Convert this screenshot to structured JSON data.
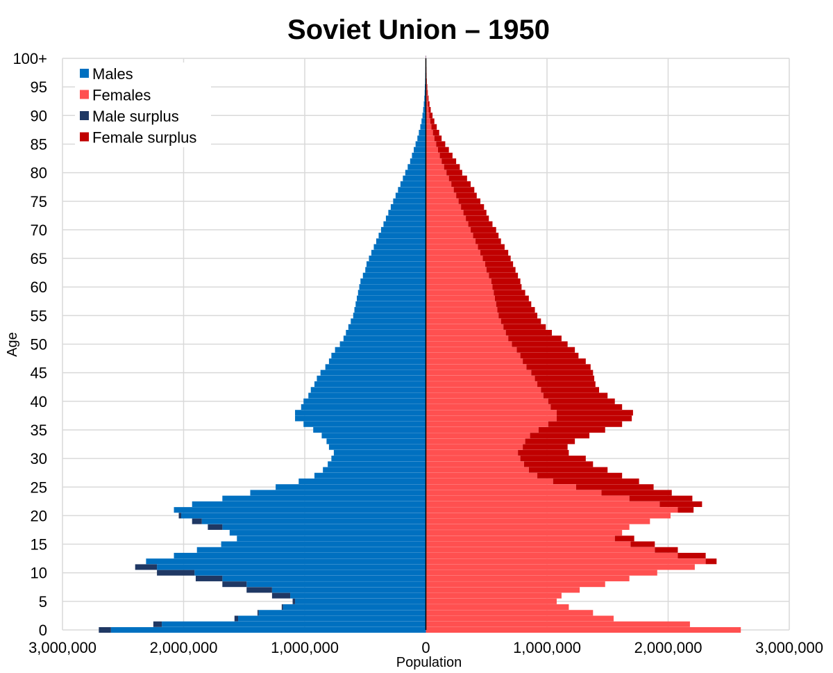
{
  "chart_data": {
    "type": "bar",
    "orientation": "horizontal",
    "title": "Soviet Union – 1950",
    "xlabel": "Population",
    "ylabel": "Age",
    "xlim": [
      -3000000,
      3000000
    ],
    "ylim": [
      0,
      100
    ],
    "x_tick_values": [
      -3000000,
      -2000000,
      -1000000,
      0,
      1000000,
      2000000,
      3000000
    ],
    "x_tick_labels": [
      "3,000,000",
      "2,000,000",
      "1,000,000",
      "0",
      "1,000,000",
      "2,000,000",
      "3,000,000"
    ],
    "y_tick_values": [
      0,
      5,
      10,
      15,
      20,
      25,
      30,
      35,
      40,
      45,
      50,
      55,
      60,
      65,
      70,
      75,
      80,
      85,
      90,
      95,
      100
    ],
    "y_tick_labels": [
      "0",
      "5",
      "10",
      "15",
      "20",
      "25",
      "30",
      "35",
      "40",
      "45",
      "50",
      "55",
      "60",
      "65",
      "70",
      "75",
      "80",
      "85",
      "90",
      "95",
      "100+"
    ],
    "grid": true,
    "legend_position": "top-left",
    "legend": [
      {
        "label": "Males",
        "color": "#0070c0"
      },
      {
        "label": "Females",
        "color": "#ff5050"
      },
      {
        "label": "Male surplus",
        "color": "#1f3864"
      },
      {
        "label": "Female surplus",
        "color": "#c00000"
      }
    ],
    "colors": {
      "males": "#0070c0",
      "females": "#ff5050",
      "male_surplus": "#1f3864",
      "female_surplus": "#c00000",
      "center_line": "#000000",
      "grid": "#d9d9d9"
    },
    "ages": [
      0,
      1,
      2,
      3,
      4,
      5,
      6,
      7,
      8,
      9,
      10,
      11,
      12,
      13,
      14,
      15,
      16,
      17,
      18,
      19,
      20,
      21,
      22,
      23,
      24,
      25,
      26,
      27,
      28,
      29,
      30,
      31,
      32,
      33,
      34,
      35,
      36,
      37,
      38,
      39,
      40,
      41,
      42,
      43,
      44,
      45,
      46,
      47,
      48,
      49,
      50,
      51,
      52,
      53,
      54,
      55,
      56,
      57,
      58,
      59,
      60,
      61,
      62,
      63,
      64,
      65,
      66,
      67,
      68,
      69,
      70,
      71,
      72,
      73,
      74,
      75,
      76,
      77,
      78,
      79,
      80,
      81,
      82,
      83,
      84,
      85,
      86,
      87,
      88,
      89,
      90,
      91,
      92,
      93,
      94,
      95,
      96,
      97,
      98,
      99,
      100
    ],
    "series": [
      {
        "name": "Males",
        "values": [
          2700000,
          2250000,
          1580000,
          1390000,
          1190000,
          1100000,
          1270000,
          1480000,
          1680000,
          1900000,
          2220000,
          2400000,
          2310000,
          2080000,
          1890000,
          1690000,
          1560000,
          1620000,
          1800000,
          1930000,
          2040000,
          2080000,
          1930000,
          1680000,
          1450000,
          1240000,
          1050000,
          920000,
          850000,
          810000,
          780000,
          760000,
          800000,
          820000,
          860000,
          930000,
          1010000,
          1080000,
          1080000,
          1030000,
          1010000,
          970000,
          950000,
          920000,
          900000,
          870000,
          830000,
          800000,
          780000,
          750000,
          710000,
          680000,
          660000,
          640000,
          620000,
          600000,
          590000,
          580000,
          570000,
          560000,
          550000,
          540000,
          520000,
          500000,
          490000,
          470000,
          450000,
          430000,
          410000,
          390000,
          370000,
          350000,
          330000,
          310000,
          290000,
          270000,
          250000,
          230000,
          210000,
          190000,
          170000,
          150000,
          130000,
          115000,
          100000,
          85000,
          70000,
          58000,
          46000,
          36000,
          28000,
          22000,
          17000,
          13000,
          10000,
          8000,
          6000,
          4500,
          3500,
          2500,
          2000
        ]
      },
      {
        "name": "Females",
        "values": [
          2600000,
          2180000,
          1550000,
          1380000,
          1180000,
          1080000,
          1120000,
          1270000,
          1480000,
          1680000,
          1910000,
          2220000,
          2400000,
          2310000,
          2080000,
          1890000,
          1720000,
          1620000,
          1680000,
          1850000,
          2020000,
          2210000,
          2280000,
          2200000,
          2030000,
          1880000,
          1760000,
          1620000,
          1500000,
          1380000,
          1320000,
          1180000,
          1170000,
          1230000,
          1350000,
          1480000,
          1620000,
          1700000,
          1710000,
          1620000,
          1560000,
          1500000,
          1430000,
          1400000,
          1390000,
          1380000,
          1360000,
          1320000,
          1260000,
          1230000,
          1170000,
          1120000,
          1040000,
          990000,
          950000,
          920000,
          900000,
          870000,
          850000,
          820000,
          790000,
          780000,
          760000,
          740000,
          720000,
          700000,
          680000,
          650000,
          620000,
          600000,
          580000,
          550000,
          520000,
          500000,
          480000,
          450000,
          420000,
          400000,
          370000,
          340000,
          300000,
          280000,
          250000,
          220000,
          190000,
          160000,
          130000,
          110000,
          90000,
          70000,
          55000,
          40000,
          30000,
          22000,
          16000,
          12000,
          8000,
          6000,
          4500,
          3000,
          2500
        ]
      }
    ]
  }
}
